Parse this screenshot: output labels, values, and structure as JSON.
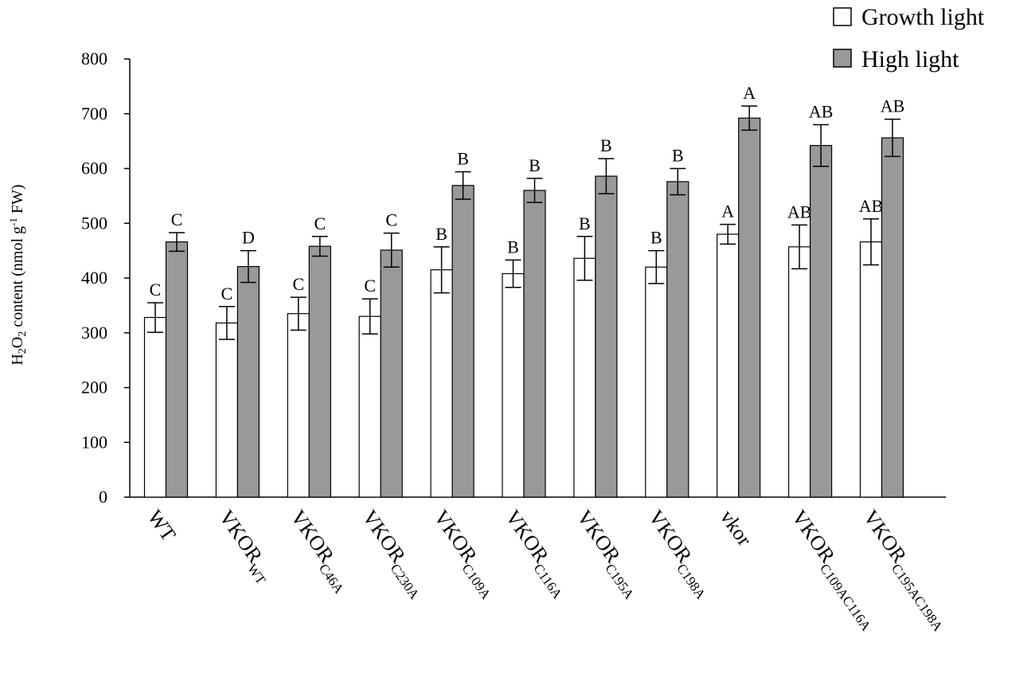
{
  "chart_data": {
    "type": "bar",
    "ylabel": {
      "prefix": "H",
      "sub1": "2",
      "mid": "O",
      "sub2": "2",
      "after": " content (nmol g",
      "sup": "-1",
      "suffix": " FW)"
    },
    "ylim": [
      0,
      800
    ],
    "yticks": [
      "0",
      "100",
      "200",
      "300",
      "400",
      "500",
      "600",
      "700",
      "800"
    ],
    "grid": false,
    "legend_position": "top-right",
    "categories": [
      {
        "main": "WT",
        "sub": ""
      },
      {
        "main": "VKOR",
        "sub": "WT"
      },
      {
        "main": "VKOR",
        "sub": "C46A"
      },
      {
        "main": "VKOR",
        "sub": "C230A"
      },
      {
        "main": "VKOR",
        "sub": "C109A"
      },
      {
        "main": "VKOR",
        "sub": "C116A"
      },
      {
        "main": "VKOR",
        "sub": "C195A"
      },
      {
        "main": "VKOR",
        "sub": "C198A"
      },
      {
        "main": "vkor",
        "sub": ""
      },
      {
        "main": "VKOR",
        "sub": "C109AC116A"
      },
      {
        "main": "VKOR",
        "sub": "C195AC198A"
      }
    ],
    "series": [
      {
        "name": "Growth light",
        "color": "#ffffff",
        "values": [
          328,
          318,
          335,
          330,
          415,
          408,
          436,
          420,
          480,
          457,
          466
        ],
        "errors": [
          27,
          30,
          30,
          32,
          42,
          25,
          40,
          30,
          18,
          40,
          42
        ],
        "letters": [
          "C",
          "C",
          "C",
          "C",
          "B",
          "B",
          "B",
          "B",
          "A",
          "AB",
          "AB"
        ]
      },
      {
        "name": "High light",
        "color": "#999999",
        "values": [
          466,
          421,
          458,
          451,
          569,
          560,
          586,
          576,
          692,
          642,
          656
        ],
        "errors": [
          17,
          29,
          18,
          31,
          25,
          22,
          32,
          24,
          22,
          38,
          34
        ],
        "letters": [
          "C",
          "D",
          "C",
          "C",
          "B",
          "B",
          "B",
          "B",
          "A",
          "AB",
          "AB"
        ]
      }
    ]
  }
}
